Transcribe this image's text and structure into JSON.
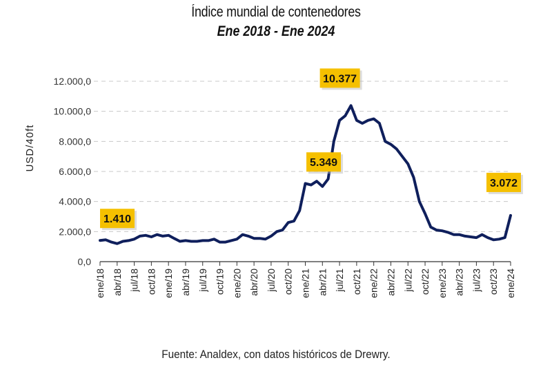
{
  "chart_data": {
    "type": "line",
    "title": "Índice mundial de contenedores",
    "subtitle": "Ene 2018 - Ene 2024",
    "xlabel": "",
    "ylabel": "USD/40ft",
    "ylim": [
      0,
      12000
    ],
    "yticks": [
      "0,0",
      "2.000,0",
      "4.000,0",
      "6.000,0",
      "8.000,0",
      "10.000,0",
      "12.000,0"
    ],
    "ytick_values": [
      0,
      2000,
      4000,
      6000,
      8000,
      10000,
      12000
    ],
    "grid": "horizontal dashed",
    "xticks": [
      "ene/18",
      "abr/18",
      "jul/18",
      "oct/18",
      "ene/19",
      "abr/19",
      "jul/19",
      "oct/19",
      "ene/20",
      "abr/20",
      "jul/20",
      "oct/20",
      "ene/21",
      "abr/21",
      "jul/21",
      "oct/21",
      "ene/22",
      "abr/22",
      "jul/22",
      "oct/22",
      "ene/23",
      "abr/23",
      "jul/23",
      "oct/23",
      "ene/24"
    ],
    "series": [
      {
        "name": "Índice mundial de contenedores",
        "color": "#0f1f5c",
        "x_months": [
          0,
          1,
          2,
          3,
          4,
          5,
          6,
          7,
          8,
          9,
          10,
          11,
          12,
          13,
          14,
          15,
          16,
          17,
          18,
          19,
          20,
          21,
          22,
          23,
          24,
          25,
          26,
          27,
          28,
          29,
          30,
          31,
          32,
          33,
          34,
          35,
          36,
          37,
          38,
          39,
          40,
          41,
          42,
          43,
          44,
          45,
          46,
          47,
          48,
          49,
          50,
          51,
          52,
          53,
          54,
          55,
          56,
          57,
          58,
          59,
          60,
          61,
          62,
          63,
          64,
          65,
          66,
          67,
          68,
          69,
          70,
          71,
          72
        ],
        "values": [
          1410,
          1450,
          1300,
          1200,
          1350,
          1400,
          1500,
          1700,
          1750,
          1650,
          1800,
          1700,
          1750,
          1550,
          1350,
          1400,
          1350,
          1350,
          1400,
          1400,
          1500,
          1300,
          1300,
          1400,
          1500,
          1800,
          1700,
          1550,
          1550,
          1500,
          1700,
          2000,
          2100,
          2600,
          2700,
          3400,
          5200,
          5100,
          5349,
          5000,
          5500,
          8000,
          9400,
          9700,
          10377,
          9400,
          9200,
          9400,
          9500,
          9200,
          8000,
          7800,
          7500,
          7000,
          6500,
          5600,
          4000,
          3200,
          2300,
          2100,
          2050,
          1950,
          1800,
          1800,
          1700,
          1650,
          1600,
          1800,
          1600,
          1450,
          1500,
          1600,
          3072
        ]
      }
    ],
    "annotations": [
      {
        "label": "1.410",
        "x_month": 0,
        "value": 1410
      },
      {
        "label": "5.349",
        "x_month": 38,
        "value": 5349
      },
      {
        "label": "10.377",
        "x_month": 44,
        "value": 10377
      },
      {
        "label": "3.072",
        "x_month": 72,
        "value": 3072
      }
    ],
    "annotation_style": {
      "background": "#f5c000",
      "text_color": "#111111"
    },
    "source": "Fuente: Analdex, con datos históricos de Drewry."
  }
}
